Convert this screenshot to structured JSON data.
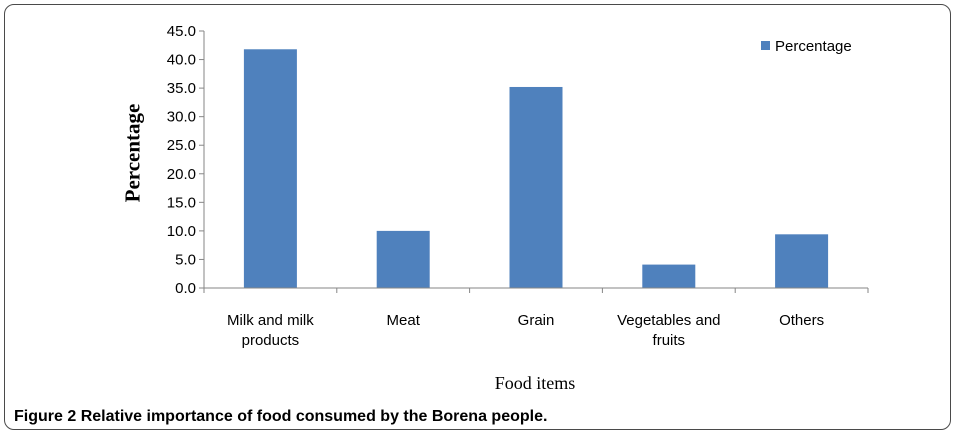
{
  "chart_data": {
    "type": "bar",
    "categories": [
      "Milk and milk products",
      "Meat",
      "Grain",
      "Vegetables and fruits",
      "Others"
    ],
    "category_lines": [
      [
        "Milk and milk",
        "products"
      ],
      [
        "Meat"
      ],
      [
        "Grain"
      ],
      [
        "Vegetables and",
        "fruits"
      ],
      [
        "Others"
      ]
    ],
    "series": [
      {
        "name": "Percentage",
        "values": [
          41.8,
          10.0,
          35.2,
          4.1,
          9.4
        ],
        "color": "#4f81bd"
      }
    ],
    "title": "",
    "xlabel": "Food items",
    "ylabel": "Percentage",
    "ylim": [
      0,
      45
    ],
    "ytick_step": 5,
    "ytick_labels": [
      "0.0",
      "5.0",
      "10.0",
      "15.0",
      "20.0",
      "25.0",
      "30.0",
      "35.0",
      "40.0",
      "45.0"
    ],
    "grid": false,
    "legend": "top-right"
  },
  "caption": {
    "label": "Figure 2",
    "text": "Relative importance of food consumed by the Borena people."
  }
}
